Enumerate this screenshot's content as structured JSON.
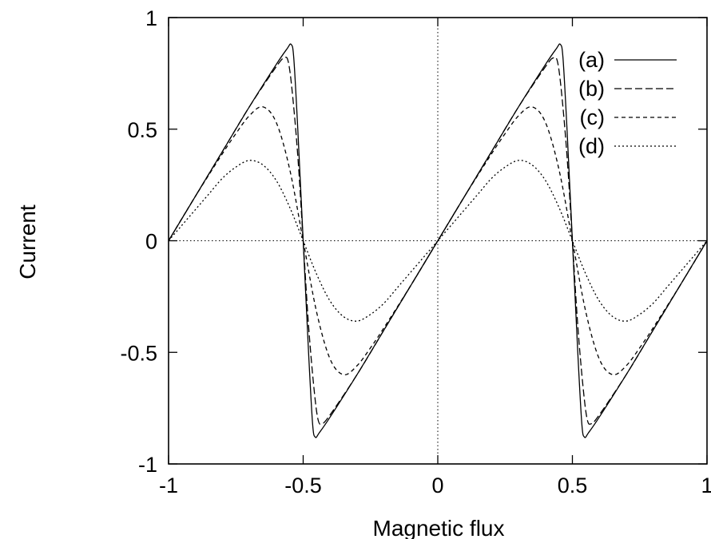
{
  "chart_data": {
    "type": "line",
    "title": "",
    "xlabel": "Magnetic flux",
    "ylabel": "Current",
    "xlim": [
      -1,
      1
    ],
    "ylim": [
      -1,
      1
    ],
    "xticks": [
      -1,
      -0.5,
      0,
      0.5,
      1
    ],
    "yticks": [
      -1,
      -0.5,
      0,
      0.5,
      1
    ],
    "xtick_labels": [
      "-1",
      "-0.5",
      "0",
      "0.5",
      "1"
    ],
    "ytick_labels": [
      "-1",
      "-0.5",
      "0",
      "0.5",
      "1"
    ],
    "zero_lines": true,
    "legend_position": "top-right",
    "series": [
      {
        "name": "(a)",
        "style": "solid",
        "color": "#000000",
        "x": [
          -1.0,
          -0.9,
          -0.8,
          -0.7,
          -0.6,
          -0.56,
          -0.545,
          -0.535,
          -0.52,
          -0.5,
          -0.48,
          -0.465,
          -0.455,
          -0.44,
          -0.4,
          -0.3,
          -0.2,
          -0.1,
          0.0,
          0.1,
          0.2,
          0.3,
          0.4,
          0.44,
          0.455,
          0.465,
          0.48,
          0.5,
          0.52,
          0.535,
          0.545,
          0.56,
          0.6,
          0.7,
          0.8,
          0.9,
          1.0
        ],
        "y": [
          0.0,
          0.2,
          0.4,
          0.6,
          0.79,
          0.86,
          0.88,
          0.82,
          0.5,
          0.0,
          -0.5,
          -0.82,
          -0.88,
          -0.86,
          -0.79,
          -0.6,
          -0.4,
          -0.2,
          0.0,
          0.2,
          0.4,
          0.6,
          0.79,
          0.86,
          0.88,
          0.82,
          0.5,
          0.0,
          -0.5,
          -0.82,
          -0.88,
          -0.86,
          -0.79,
          -0.6,
          -0.4,
          -0.2,
          0.0
        ]
      },
      {
        "name": "(b)",
        "style": "dashed",
        "color": "#000000",
        "x": [
          -1.0,
          -0.9,
          -0.8,
          -0.7,
          -0.6,
          -0.57,
          -0.555,
          -0.54,
          -0.52,
          -0.5,
          -0.48,
          -0.46,
          -0.445,
          -0.43,
          -0.4,
          -0.3,
          -0.2,
          -0.1,
          0.0,
          0.1,
          0.2,
          0.3,
          0.4,
          0.43,
          0.445,
          0.46,
          0.48,
          0.5,
          0.52,
          0.54,
          0.555,
          0.57,
          0.6,
          0.7,
          0.8,
          0.9,
          1.0
        ],
        "y": [
          0.0,
          0.2,
          0.4,
          0.6,
          0.78,
          0.82,
          0.8,
          0.66,
          0.38,
          0.0,
          -0.38,
          -0.66,
          -0.8,
          -0.82,
          -0.78,
          -0.6,
          -0.4,
          -0.2,
          0.0,
          0.2,
          0.4,
          0.6,
          0.78,
          0.82,
          0.8,
          0.66,
          0.38,
          0.0,
          -0.38,
          -0.66,
          -0.8,
          -0.82,
          -0.78,
          -0.6,
          -0.4,
          -0.2,
          0.0
        ]
      },
      {
        "name": "(c)",
        "style": "short-dashed",
        "color": "#000000",
        "x": [
          -1.0,
          -0.9,
          -0.8,
          -0.75,
          -0.7,
          -0.65,
          -0.6,
          -0.55,
          -0.5,
          -0.45,
          -0.4,
          -0.35,
          -0.3,
          -0.25,
          -0.2,
          -0.1,
          0.0,
          0.1,
          0.2,
          0.25,
          0.3,
          0.35,
          0.4,
          0.45,
          0.5,
          0.55,
          0.6,
          0.65,
          0.7,
          0.75,
          0.8,
          0.9,
          1.0
        ],
        "y": [
          0.0,
          0.2,
          0.39,
          0.48,
          0.56,
          0.6,
          0.53,
          0.32,
          0.0,
          -0.32,
          -0.53,
          -0.6,
          -0.56,
          -0.48,
          -0.39,
          -0.2,
          0.0,
          0.2,
          0.39,
          0.48,
          0.56,
          0.6,
          0.53,
          0.32,
          0.0,
          -0.32,
          -0.53,
          -0.6,
          -0.56,
          -0.48,
          -0.39,
          -0.2,
          0.0
        ]
      },
      {
        "name": "(d)",
        "style": "dotted",
        "color": "#000000",
        "x": [
          -1.0,
          -0.95,
          -0.9,
          -0.85,
          -0.8,
          -0.75,
          -0.7,
          -0.65,
          -0.6,
          -0.55,
          -0.5,
          -0.45,
          -0.4,
          -0.35,
          -0.3,
          -0.25,
          -0.2,
          -0.15,
          -0.1,
          -0.05,
          0.0,
          0.05,
          0.1,
          0.15,
          0.2,
          0.25,
          0.3,
          0.35,
          0.4,
          0.45,
          0.5,
          0.55,
          0.6,
          0.65,
          0.7,
          0.75,
          0.8,
          0.85,
          0.9,
          0.95,
          1.0
        ],
        "y": [
          0.0,
          0.07,
          0.14,
          0.21,
          0.28,
          0.33,
          0.36,
          0.34,
          0.27,
          0.15,
          0.0,
          -0.15,
          -0.27,
          -0.34,
          -0.36,
          -0.33,
          -0.28,
          -0.21,
          -0.14,
          -0.07,
          0.0,
          0.07,
          0.14,
          0.21,
          0.28,
          0.33,
          0.36,
          0.34,
          0.27,
          0.15,
          0.0,
          -0.15,
          -0.27,
          -0.34,
          -0.36,
          -0.33,
          -0.28,
          -0.21,
          -0.14,
          -0.07,
          0.0
        ]
      }
    ]
  }
}
